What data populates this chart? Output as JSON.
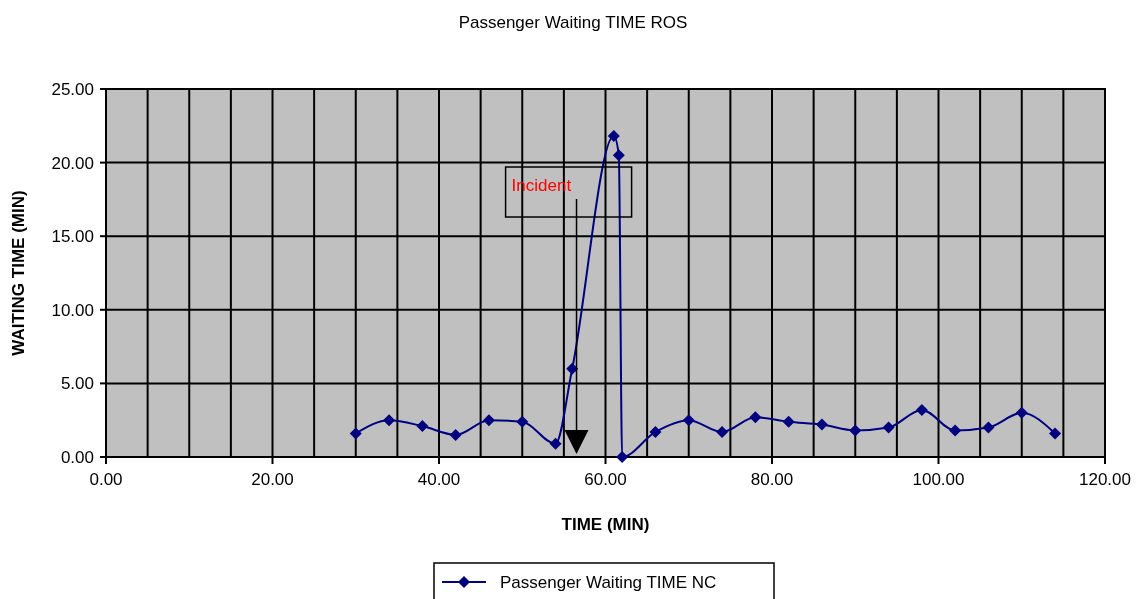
{
  "chart_data": {
    "type": "line",
    "title": "Passenger Waiting TIME ROS",
    "xlabel": "TIME (MIN)",
    "ylabel": "WAITING TIME (MIN)",
    "xlim": [
      0,
      120
    ],
    "ylim": [
      0,
      25
    ],
    "xticks": [
      {
        "value": 0,
        "label": "0.00"
      },
      {
        "value": 5,
        "label": null
      },
      {
        "value": 10,
        "label": null
      },
      {
        "value": 15,
        "label": null
      },
      {
        "value": 20,
        "label": "20.00"
      },
      {
        "value": 25,
        "label": null
      },
      {
        "value": 30,
        "label": null
      },
      {
        "value": 35,
        "label": null
      },
      {
        "value": 40,
        "label": "40.00"
      },
      {
        "value": 45,
        "label": null
      },
      {
        "value": 50,
        "label": null
      },
      {
        "value": 55,
        "label": null
      },
      {
        "value": 60,
        "label": "60.00"
      },
      {
        "value": 65,
        "label": null
      },
      {
        "value": 70,
        "label": null
      },
      {
        "value": 75,
        "label": null
      },
      {
        "value": 80,
        "label": "80.00"
      },
      {
        "value": 85,
        "label": null
      },
      {
        "value": 90,
        "label": null
      },
      {
        "value": 95,
        "label": null
      },
      {
        "value": 100,
        "label": "100.00"
      },
      {
        "value": 105,
        "label": null
      },
      {
        "value": 110,
        "label": null
      },
      {
        "value": 115,
        "label": null
      },
      {
        "value": 120,
        "label": "120.00"
      }
    ],
    "yticks": [
      {
        "value": 0,
        "label": "0.00"
      },
      {
        "value": 5,
        "label": "5.00"
      },
      {
        "value": 10,
        "label": "10.00"
      },
      {
        "value": 15,
        "label": "15.00"
      },
      {
        "value": 20,
        "label": "20.00"
      },
      {
        "value": 25,
        "label": "25.00"
      }
    ],
    "grid": true,
    "legend": "bottom",
    "marker": "diamond",
    "line_style": "solid",
    "annotations": [
      "Incident"
    ],
    "series": [
      {
        "name": "Passenger Waiting TIME NC",
        "color": "#000080",
        "x": [
          30,
          34,
          38,
          42,
          46,
          50,
          54,
          56,
          61,
          61.6,
          62,
          66,
          70,
          74,
          78,
          82,
          86,
          90,
          94,
          98,
          102,
          106,
          110,
          114
        ],
        "values": [
          1.6,
          2.5,
          2.1,
          1.5,
          2.5,
          2.4,
          0.9,
          6,
          21.8,
          20.5,
          0,
          1.7,
          2.5,
          1.7,
          2.7,
          2.4,
          2.2,
          1.8,
          2,
          3.2,
          1.8,
          2,
          3,
          1.6
        ]
      }
    ]
  }
}
